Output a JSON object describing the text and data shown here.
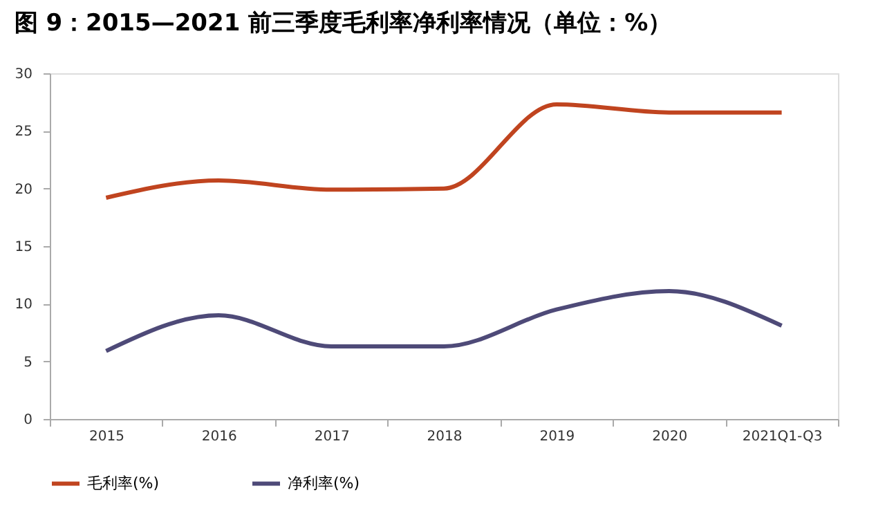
{
  "chart_data": {
    "type": "line",
    "title": "图 9：2015—2021 前三季度毛利率净利率情况（单位：%）",
    "categories": [
      "2015",
      "2016",
      "2017",
      "2018",
      "2019",
      "2020",
      "2021Q1-Q3"
    ],
    "series": [
      {
        "name": "毛利率(%)",
        "color": "#c0441f",
        "values": [
          19.2,
          20.7,
          19.9,
          20.0,
          27.3,
          26.6,
          26.6
        ]
      },
      {
        "name": "净利率(%)",
        "color": "#4e4a78",
        "values": [
          5.9,
          9.0,
          6.3,
          6.3,
          9.5,
          11.1,
          8.1
        ]
      }
    ],
    "ylim": [
      0,
      30
    ],
    "yticks": [
      0,
      5,
      10,
      15,
      20,
      25,
      30
    ],
    "grid": false,
    "legend": "bottom",
    "marker": "none",
    "line_style": "solid"
  }
}
